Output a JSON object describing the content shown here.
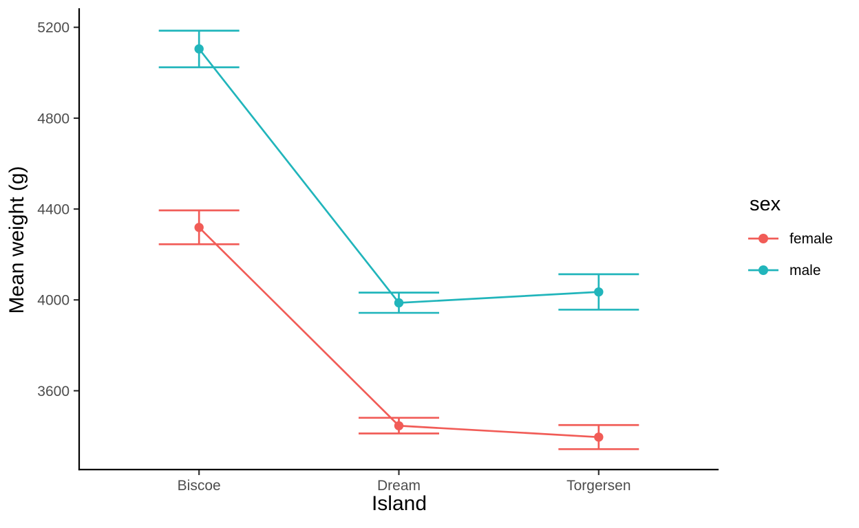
{
  "figure": {
    "background": "#FFFFFF"
  },
  "chart_data": {
    "type": "line",
    "subtype": "point-range with errorbars (ggplot style)",
    "title": "",
    "xlabel": "Island",
    "ylabel": "Mean weight (g)",
    "categories": [
      "Biscoe",
      "Dream",
      "Torgersen"
    ],
    "y_ticks": [
      3600,
      4000,
      4400,
      4800,
      5200
    ],
    "ylim": [
      3250,
      5285
    ],
    "grid": false,
    "legend": {
      "title": "sex",
      "position": "right"
    },
    "axis_text_color": "#4D4D4D",
    "axis_line_color": "#000000",
    "tick_color": "#333333",
    "series": [
      {
        "name": "female",
        "color": "#F15C57",
        "means": [
          4319,
          3446,
          3396
        ],
        "lower": [
          4245,
          3412,
          3343
        ],
        "upper": [
          4394,
          3481,
          3449
        ]
      },
      {
        "name": "male",
        "color": "#21B5BB",
        "means": [
          5105,
          3987,
          4035
        ],
        "lower": [
          5024,
          3943,
          3957
        ],
        "upper": [
          5185,
          4032,
          4113
        ]
      }
    ]
  }
}
